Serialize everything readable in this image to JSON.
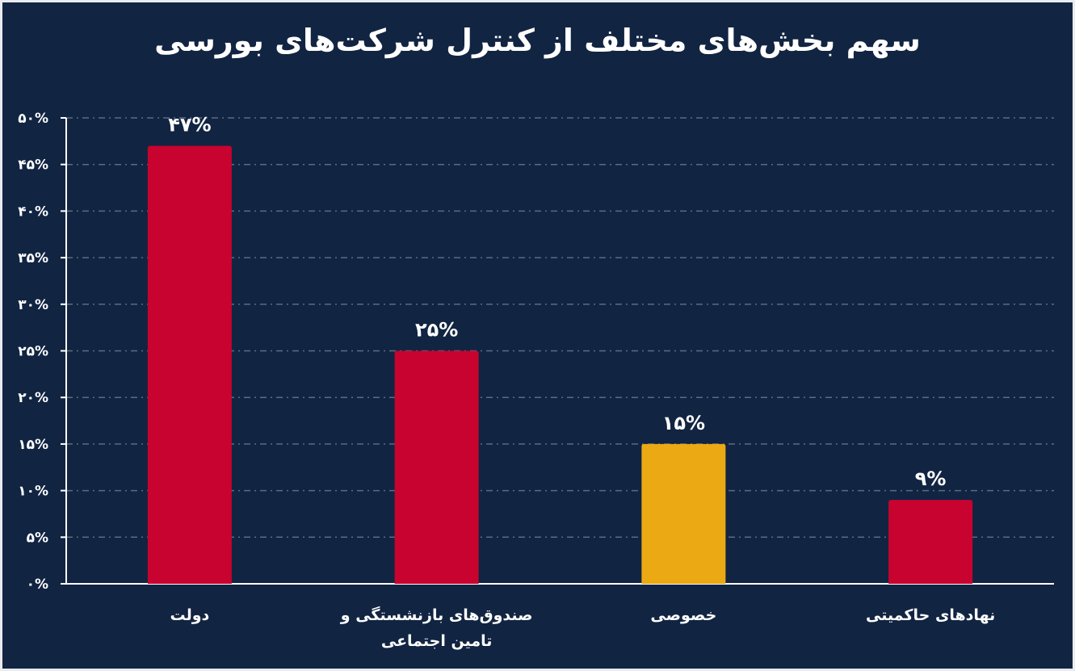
{
  "chart_data": {
    "type": "bar",
    "title": "سهم بخش‌های مختلف از کنترل شرکت‌های بورسی",
    "categories": [
      [
        "دولت"
      ],
      [
        "صندوق‌های بازنشستگی و",
        "تامین اجتماعی"
      ],
      [
        "خصوصی"
      ],
      [
        "نهادهای حاکمیتی"
      ]
    ],
    "values": [
      47,
      25,
      15,
      9
    ],
    "data_labels": [
      "۴۷%",
      "۲۵%",
      "۱۵%",
      "۹%"
    ],
    "bar_colors": [
      "#c8032f",
      "#c8032f",
      "#eba913",
      "#c8032f"
    ],
    "ylim": [
      0,
      50
    ],
    "yticks": [
      0,
      5,
      10,
      15,
      20,
      25,
      30,
      35,
      40,
      45,
      50
    ],
    "ytick_labels": [
      "۰%",
      "۵%",
      "۱۰%",
      "۱۵%",
      "۲۰%",
      "۲۵%",
      "۳۰%",
      "۳۵%",
      "۴۰%",
      "۴۵%",
      "۵۰%"
    ],
    "grid": true,
    "xlabel": "",
    "ylabel": ""
  },
  "colors": {
    "background": "#112442",
    "grid": "#5d6b80"
  }
}
